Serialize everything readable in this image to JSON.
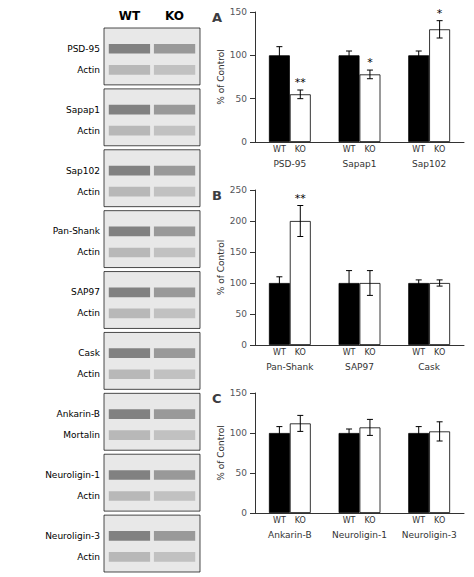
{
  "chart_data": [
    {
      "type": "blot",
      "categories": [
        "WT",
        "KO"
      ],
      "annotations": [
        [
          "PSD-95",
          "Actin"
        ],
        [
          "Sapap1",
          "Actin"
        ],
        [
          "Sap102",
          "Actin"
        ],
        [
          "Pan-Shank",
          "Actin"
        ],
        [
          "SAP97",
          "Actin"
        ],
        [
          "Cask",
          "Actin"
        ],
        [
          "Ankarin-B",
          "Mortalin"
        ],
        [
          "Neuroligin-1",
          "Actin"
        ],
        [
          "Neuroligin-3",
          "Actin"
        ]
      ]
    },
    {
      "type": "bar",
      "title": "A",
      "categories": [
        "PSD-95",
        "Sapap1",
        "Sap102"
      ],
      "series": [
        {
          "name": "WT",
          "color": "#000000",
          "values": [
            100,
            100,
            100
          ],
          "errors": [
            10,
            5,
            5
          ]
        },
        {
          "name": "KO",
          "color": "#ffffff",
          "values": [
            55,
            78,
            130
          ],
          "errors": [
            5,
            5,
            10
          ]
        }
      ],
      "ylabel": "% of Control",
      "ylim": [
        0,
        150
      ],
      "yticks": [
        0,
        50,
        100,
        150
      ],
      "grid": false,
      "annotations": [
        {
          "text": "**",
          "category": "PSD-95",
          "series": "KO"
        },
        {
          "text": "*",
          "category": "Sapap1",
          "series": "KO"
        },
        {
          "text": "*",
          "category": "Sap102",
          "series": "KO"
        }
      ]
    },
    {
      "type": "bar",
      "title": "B",
      "categories": [
        "Pan-Shank",
        "SAP97",
        "Cask"
      ],
      "series": [
        {
          "name": "WT",
          "color": "#000000",
          "values": [
            100,
            100,
            100
          ],
          "errors": [
            10,
            20,
            5
          ]
        },
        {
          "name": "KO",
          "color": "#ffffff",
          "values": [
            200,
            100,
            100
          ],
          "errors": [
            25,
            20,
            5
          ]
        }
      ],
      "ylabel": "% of Control",
      "ylim": [
        0,
        250
      ],
      "yticks": [
        0,
        50,
        100,
        150,
        200,
        250
      ],
      "grid": false,
      "annotations": [
        {
          "text": "**",
          "category": "Pan-Shank",
          "series": "KO"
        }
      ]
    },
    {
      "type": "bar",
      "title": "C",
      "categories": [
        "Ankarin-B",
        "Neuroligin-1",
        "Neuroligin-3"
      ],
      "series": [
        {
          "name": "WT",
          "color": "#000000",
          "values": [
            100,
            100,
            100
          ],
          "errors": [
            8,
            5,
            8
          ]
        },
        {
          "name": "KO",
          "color": "#ffffff",
          "values": [
            112,
            107,
            102
          ],
          "errors": [
            10,
            10,
            12
          ]
        }
      ],
      "ylabel": "% of Control",
      "ylim": [
        0,
        150
      ],
      "yticks": [
        0,
        50,
        100,
        150
      ],
      "grid": false
    }
  ]
}
